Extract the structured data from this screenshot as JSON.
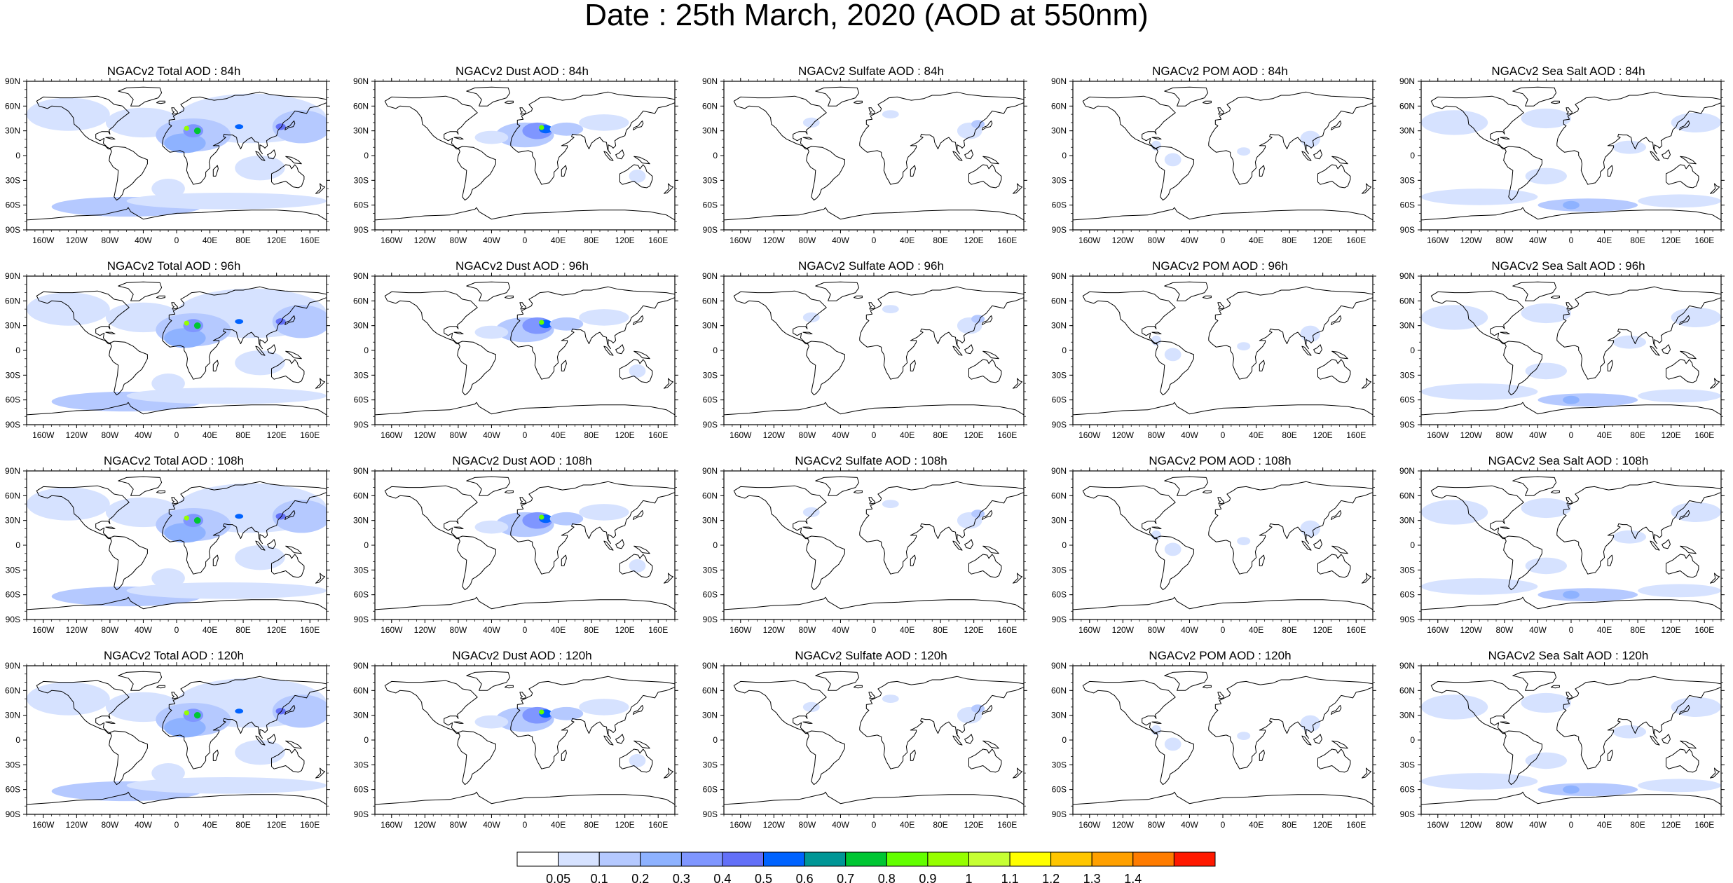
{
  "title": "Date : 25th March, 2020 (AOD at 550nm)",
  "lat_labels": [
    "90N",
    "60N",
    "30N",
    "0",
    "30S",
    "60S",
    "90S"
  ],
  "lon_labels": [
    "160W",
    "120W",
    "80W",
    "40W",
    "0",
    "40E",
    "80E",
    "120E",
    "160E"
  ],
  "panels": [
    [
      "NGACv2 Total AOD : 84h",
      "NGACv2 Dust AOD : 84h",
      "NGACv2 Sulfate AOD : 84h",
      "NGACv2 POM AOD : 84h",
      "NGACv2 Sea Salt AOD : 84h"
    ],
    [
      "NGACv2 Total AOD : 96h",
      "NGACv2 Dust AOD : 96h",
      "NGACv2 Sulfate AOD : 96h",
      "NGACv2 POM AOD : 96h",
      "NGACv2 Sea Salt AOD : 96h"
    ],
    [
      "NGACv2 Total AOD : 108h",
      "NGACv2 Dust AOD : 108h",
      "NGACv2 Sulfate AOD : 108h",
      "NGACv2 POM AOD : 108h",
      "NGACv2 Sea Salt AOD : 108h"
    ],
    [
      "NGACv2 Total AOD : 120h",
      "NGACv2 Dust AOD : 120h",
      "NGACv2 Sulfate AOD : 120h",
      "NGACv2 POM AOD : 120h",
      "NGACv2 Sea Salt  AOD : 120h"
    ]
  ],
  "colorbar": {
    "labels": [
      "0.05",
      "0.1",
      "0.2",
      "0.3",
      "0.4",
      "0.5",
      "0.6",
      "0.7",
      "0.8",
      "0.9",
      "1",
      "1.1",
      "1.2",
      "1.3",
      "1.4"
    ],
    "colors": [
      "#ffffff",
      "#d6e2ff",
      "#b5c9ff",
      "#8eb2ff",
      "#7f96ff",
      "#6370f8",
      "#0063ff",
      "#009696",
      "#00c633",
      "#63ff00",
      "#96ff00",
      "#c6ff33",
      "#ffff00",
      "#ffc600",
      "#ffa000",
      "#ff7c00",
      "#ff1900"
    ]
  }
}
